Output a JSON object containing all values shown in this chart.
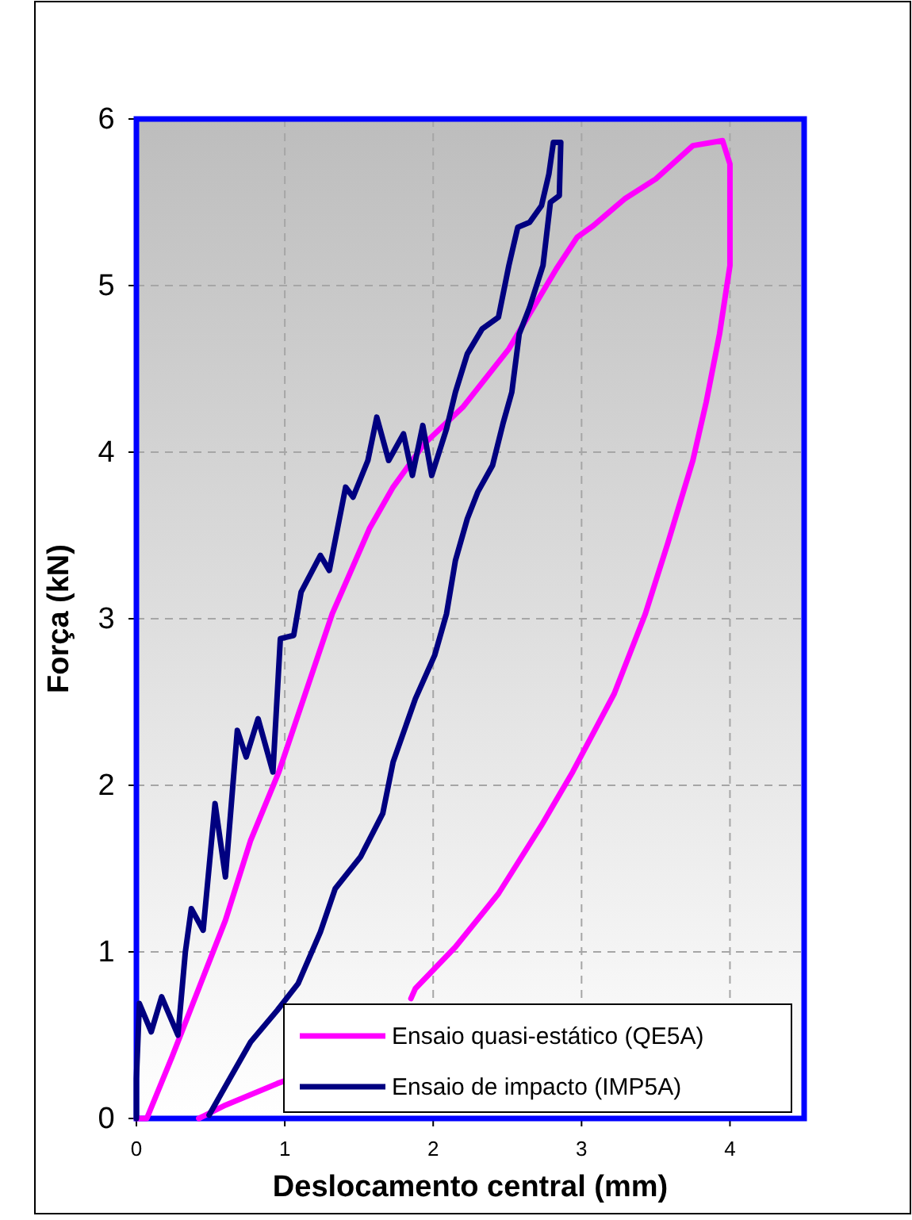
{
  "chart_data": {
    "type": "line",
    "xlabel": "Deslocamento central (mm)",
    "ylabel": "Força (kN)",
    "xlim": [
      0,
      4.5
    ],
    "xticks": [
      0,
      1,
      2,
      3,
      4
    ],
    "ylim": [
      0,
      6
    ],
    "yticks": [
      0,
      1,
      2,
      3,
      4,
      5,
      6
    ],
    "grid": true,
    "legend": "bottom right",
    "line_style": "solid",
    "marker": "none",
    "series": [
      {
        "name": "Ensaio quasi-estático (QE5A)",
        "color": "#ff00ff",
        "x": [
          0,
          0.07,
          0.24,
          0.42,
          0.6,
          0.77,
          0.96,
          1.32,
          1.57,
          1.73,
          1.94,
          2.2,
          2.51,
          2.83,
          2.97,
          3.08,
          3.29,
          3.5,
          3.75,
          3.95,
          4.0,
          4.0,
          3.93,
          3.84,
          3.75,
          3.58,
          3.43,
          3.22,
          2.94,
          2.73,
          2.44,
          2.15,
          1.88,
          1.85,
          null,
          1.01,
          0.95,
          0.6,
          0.42
        ],
        "values": [
          0,
          0,
          0.37,
          0.78,
          1.19,
          1.67,
          2.08,
          3.03,
          3.54,
          3.79,
          4.05,
          4.27,
          4.62,
          5.1,
          5.29,
          5.36,
          5.52,
          5.64,
          5.84,
          5.87,
          5.73,
          5.12,
          4.71,
          4.3,
          3.95,
          3.45,
          3.03,
          2.55,
          2.08,
          1.76,
          1.35,
          1.03,
          0.78,
          0.72,
          null,
          0.23,
          0.21,
          0.08,
          0
        ]
      },
      {
        "name": "Ensaio de impacto (IMP5A)",
        "color": "#000080",
        "x": [
          0,
          0,
          0.02,
          0.1,
          0.17,
          0.28,
          0.33,
          0.37,
          0.45,
          0.53,
          0.6,
          0.68,
          0.74,
          0.82,
          0.92,
          0.97,
          1.06,
          1.11,
          1.24,
          1.3,
          1.41,
          1.46,
          1.56,
          1.62,
          1.7,
          1.8,
          1.86,
          1.93,
          1.99,
          2.09,
          2.15,
          2.23,
          2.33,
          2.44,
          2.51,
          2.57,
          2.65,
          2.73,
          2.78,
          2.81,
          2.86,
          2.85,
          2.79,
          2.74,
          2.65,
          2.58,
          2.53,
          2.47,
          2.4,
          2.3,
          2.23,
          2.15,
          2.09,
          2.01,
          1.88,
          1.73,
          1.66,
          1.51,
          1.34,
          1.24,
          1.09,
          0.95,
          0.77,
          0.63,
          0.49
        ],
        "values": [
          0,
          0.24,
          0.69,
          0.52,
          0.73,
          0.5,
          1.0,
          1.26,
          1.13,
          1.89,
          1.45,
          2.33,
          2.17,
          2.4,
          2.08,
          2.88,
          2.9,
          3.16,
          3.38,
          3.29,
          3.79,
          3.73,
          3.95,
          4.21,
          3.95,
          4.11,
          3.86,
          4.16,
          3.86,
          4.14,
          4.36,
          4.59,
          4.74,
          4.81,
          5.12,
          5.35,
          5.38,
          5.48,
          5.67,
          5.86,
          5.86,
          5.54,
          5.5,
          5.12,
          4.87,
          4.71,
          4.36,
          4.17,
          3.92,
          3.76,
          3.6,
          3.35,
          3.03,
          2.78,
          2.52,
          2.14,
          1.83,
          1.57,
          1.38,
          1.12,
          0.81,
          0.65,
          0.46,
          0.24,
          0.02
        ]
      }
    ]
  }
}
